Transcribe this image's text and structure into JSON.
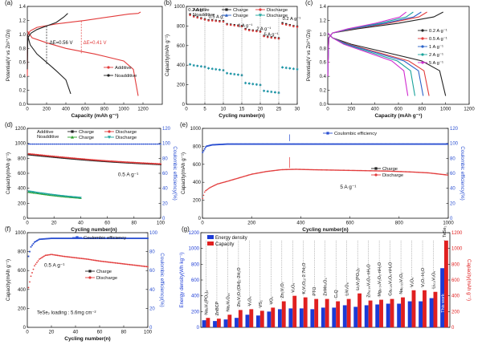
{
  "chart_data": [
    {
      "panel": "(a)",
      "type": "line",
      "xlabel": "Capacity (mAh g⁻¹)",
      "ylabel": "Potential(V vs Zn²⁺/Zn)",
      "xlim": [
        0,
        1400
      ],
      "ylim": [
        0,
        1.4
      ],
      "xticks": [
        0,
        200,
        400,
        600,
        800,
        1000,
        1200
      ],
      "yticks": [
        0,
        0.2,
        0.4,
        0.6,
        0.8,
        1.0,
        1.2,
        1.4
      ],
      "series": [
        {
          "name": "Additive",
          "color": "#e23b3b",
          "points": [
            [
              0,
              0.4
            ],
            [
              5,
              1.0
            ],
            [
              30,
              1.05
            ],
            [
              100,
              1.1
            ],
            [
              300,
              1.15
            ],
            [
              600,
              1.2
            ],
            [
              900,
              1.26
            ],
            [
              1050,
              1.29
            ],
            [
              1150,
              1.3
            ],
            [
              1175,
              1.32
            ],
            [
              null,
              null
            ],
            [
              1150,
              0.12
            ],
            [
              1100,
              0.5
            ],
            [
              1000,
              0.62
            ],
            [
              700,
              0.72
            ],
            [
              400,
              0.8
            ],
            [
              200,
              0.88
            ],
            [
              50,
              0.95
            ],
            [
              0,
              1.05
            ]
          ]
        },
        {
          "name": "Noadditive",
          "color": "#222222",
          "points": [
            [
              0,
              0.5
            ],
            [
              5,
              0.95
            ],
            [
              40,
              1.02
            ],
            [
              100,
              1.07
            ],
            [
              200,
              1.12
            ],
            [
              300,
              1.17
            ],
            [
              380,
              1.25
            ],
            [
              420,
              1.3
            ],
            [
              null,
              null
            ],
            [
              450,
              0.15
            ],
            [
              400,
              0.35
            ],
            [
              300,
              0.48
            ],
            [
              200,
              0.6
            ],
            [
              100,
              0.72
            ],
            [
              30,
              0.85
            ],
            [
              0,
              1.0
            ]
          ]
        }
      ],
      "annotations": [
        "ΔE=0.56 V",
        "ΔE=0.41 V"
      ]
    },
    {
      "panel": "(b)",
      "type": "scatter",
      "xlabel": "Cycling number(n)",
      "ylabel": "Capacity(mAh g⁻¹)",
      "xlim": [
        0,
        30
      ],
      "ylim": [
        0,
        1000
      ],
      "xticks": [
        0,
        5,
        10,
        15,
        20,
        25,
        30
      ],
      "yticks": [
        0,
        200,
        400,
        600,
        800,
        1000
      ],
      "legend": [
        "Additive",
        "Noadditive",
        "Charge",
        "Discharge",
        "Charge",
        "Discharge"
      ],
      "rate_labels": [
        "0.2 A g⁻¹",
        "0.5 A g⁻¹",
        "1 A g⁻¹",
        "2 A g⁻¹",
        "5 A g⁻¹",
        "0.2 A g⁻¹"
      ],
      "series": [
        {
          "name": "Additive Charge",
          "color": "#222222",
          "values": [
            920,
            900,
            890,
            880,
            870,
            860,
            860,
            855,
            850,
            850,
            820,
            815,
            810,
            805,
            800,
            770,
            760,
            755,
            750,
            745,
            700,
            690,
            685,
            680,
            675,
            830,
            820,
            810,
            800,
            795
          ]
        },
        {
          "name": "Additive Discharge",
          "color": "#e23b3b",
          "values": [
            910,
            895,
            885,
            875,
            865,
            855,
            855,
            850,
            845,
            845,
            815,
            810,
            805,
            800,
            795,
            765,
            755,
            750,
            745,
            740,
            695,
            685,
            680,
            675,
            670,
            820,
            812,
            805,
            795,
            790
          ]
        },
        {
          "name": "Noadditive Charge",
          "color": "#2a62c9",
          "values": [
            410,
            400,
            395,
            390,
            385,
            370,
            365,
            360,
            355,
            350,
            320,
            315,
            310,
            305,
            300,
            220,
            215,
            210,
            205,
            200,
            140,
            135,
            130,
            125,
            120,
            380,
            375,
            370,
            365,
            360
          ]
        },
        {
          "name": "Noadditive Discharge",
          "color": "#1aa39b",
          "values": [
            405,
            395,
            390,
            385,
            380,
            365,
            360,
            355,
            350,
            345,
            315,
            310,
            305,
            300,
            295,
            215,
            210,
            205,
            200,
            195,
            135,
            130,
            125,
            120,
            115,
            375,
            370,
            365,
            360,
            355
          ]
        }
      ]
    },
    {
      "panel": "(c)",
      "type": "line",
      "xlabel": "Capacity (mAh g⁻¹)",
      "ylabel": "Potential(V vs Zn²⁺/Zn)",
      "xlim": [
        0,
        1200
      ],
      "ylim": [
        0,
        1.4
      ],
      "xticks": [
        0,
        200,
        400,
        600,
        800,
        1000,
        1200
      ],
      "yticks": [
        0,
        0.2,
        0.4,
        0.6,
        0.8,
        1.0,
        1.2,
        1.4
      ],
      "series": [
        {
          "name": "0.2 A g⁻¹",
          "color": "#222222",
          "cap": 1000
        },
        {
          "name": "0.5 A g⁻¹",
          "color": "#e23b3b",
          "cap": 860
        },
        {
          "name": "1 A g⁻¹",
          "color": "#2a62c9",
          "cap": 810
        },
        {
          "name": "2 A g⁻¹",
          "color": "#1aa39b",
          "cap": 740
        },
        {
          "name": "5 A g⁻¹",
          "color": "#d02ad0",
          "cap": 680
        }
      ]
    },
    {
      "panel": "(d)",
      "type": "scatter",
      "xlabel": "Cycling number(n)",
      "ylabel": "Capacity(mAh g⁻¹)",
      "y2label": "Coulombic efficiency(%)",
      "xlim": [
        0,
        100
      ],
      "ylim": [
        0,
        1200
      ],
      "y2lim": [
        0,
        120
      ],
      "xticks": [
        0,
        20,
        40,
        60,
        80,
        100
      ],
      "yticks": [
        0,
        200,
        400,
        600,
        800,
        1000,
        1200
      ],
      "y2ticks": [
        0,
        20,
        40,
        60,
        80,
        100,
        120
      ],
      "legend": [
        "Additive",
        "Noadditive",
        "Charge",
        "Discharge",
        "Charge",
        "Discharge"
      ],
      "annotation": "0.5 A g⁻¹",
      "series": [
        {
          "name": "Additive Charge",
          "color": "#222222",
          "x_range": [
            1,
            100
          ],
          "y_start": 850,
          "y_end": 720
        },
        {
          "name": "Additive Discharge",
          "color": "#e23b3b",
          "x_range": [
            1,
            100
          ],
          "y_start": 860,
          "y_end": 725
        },
        {
          "name": "Noadditive Charge",
          "color": "#2aa02a",
          "x_range": [
            1,
            40
          ],
          "y_start": 350,
          "y_end": 270
        },
        {
          "name": "Noadditive Discharge",
          "color": "#1aa39b",
          "x_range": [
            1,
            40
          ],
          "y_start": 360,
          "y_end": 275
        },
        {
          "name": "Coulombic efficiency",
          "color": "#2a4fd1",
          "x_range": [
            1,
            100
          ],
          "y2": 99
        }
      ]
    },
    {
      "panel": "(e)",
      "type": "scatter",
      "xlabel": "Cycling number(n)",
      "ylabel": "Capacity(mAh g⁻¹)",
      "y2label": "Coulombic efficiency(%)",
      "xlim": [
        0,
        1000
      ],
      "ylim": [
        0,
        1000
      ],
      "y2lim": [
        0,
        120
      ],
      "xticks": [
        0,
        200,
        400,
        600,
        800,
        1000
      ],
      "yticks": [
        0,
        200,
        400,
        600,
        800,
        1000
      ],
      "y2ticks": [
        0,
        20,
        40,
        60,
        80,
        100,
        120
      ],
      "legend": [
        "Coulombic efficiency",
        "Charge",
        "Discharge"
      ],
      "annotation": "5 A g⁻¹",
      "series": [
        {
          "name": "Capacity",
          "color": "#e23b3b",
          "points": [
            [
              1,
              220
            ],
            [
              10,
              300
            ],
            [
              30,
              340
            ],
            [
              60,
              380
            ],
            [
              100,
              410
            ],
            [
              150,
              450
            ],
            [
              200,
              490
            ],
            [
              260,
              520
            ],
            [
              320,
              540
            ],
            [
              380,
              545
            ],
            [
              450,
              540
            ],
            [
              550,
              535
            ],
            [
              650,
              530
            ],
            [
              750,
              525
            ],
            [
              850,
              515
            ],
            [
              920,
              505
            ],
            [
              1000,
              480
            ]
          ]
        },
        {
          "name": "Coulombic efficiency",
          "color": "#2a4fd1",
          "points": [
            [
              1,
              88
            ],
            [
              15,
              96
            ],
            [
              40,
              98
            ],
            [
              100,
              99
            ],
            [
              1000,
              99
            ]
          ]
        }
      ]
    },
    {
      "panel": "(f)",
      "type": "scatter",
      "xlabel": "Cycling number(n)",
      "ylabel": "Capacity(mAh g⁻¹)",
      "y2label": "Coulombic efficiency(%)",
      "xlim": [
        0,
        100
      ],
      "ylim": [
        0,
        1000
      ],
      "y2lim": [
        0,
        100
      ],
      "xticks": [
        0,
        20,
        40,
        60,
        80,
        100
      ],
      "yticks": [
        0,
        200,
        400,
        600,
        800,
        1000
      ],
      "y2ticks": [
        0,
        20,
        40,
        60,
        80,
        100
      ],
      "legend": [
        "Coulombic efficiency",
        "Charge",
        "Discharge"
      ],
      "annotations": [
        "0.5 A g⁻¹",
        "TeSe₂ loading : 5.6mg cm⁻²"
      ],
      "series": [
        {
          "name": "Capacity",
          "color": "#e23b3b",
          "points": [
            [
              1,
              420
            ],
            [
              3,
              540
            ],
            [
              6,
              650
            ],
            [
              10,
              720
            ],
            [
              15,
              760
            ],
            [
              20,
              770
            ],
            [
              30,
              750
            ],
            [
              40,
              735
            ],
            [
              50,
              720
            ],
            [
              60,
              700
            ],
            [
              70,
              685
            ],
            [
              80,
              670
            ],
            [
              90,
              655
            ],
            [
              100,
              640
            ]
          ]
        },
        {
          "name": "Coulombic efficiency",
          "color": "#2a4fd1",
          "points": [
            [
              1,
              75
            ],
            [
              3,
              85
            ],
            [
              6,
              90
            ],
            [
              10,
              93
            ],
            [
              20,
              94
            ],
            [
              100,
              94
            ]
          ]
        }
      ]
    },
    {
      "panel": "(g)",
      "type": "bar",
      "ylabel": "Energy density(Wh kg⁻¹)",
      "y2label": "Capacity(mAh g⁻¹)",
      "ylim": [
        0,
        1200
      ],
      "y2lim": [
        0,
        1200
      ],
      "yticks": [
        0,
        200,
        400,
        600,
        800,
        1000,
        1200
      ],
      "y2ticks": [
        0,
        200,
        400,
        600,
        800,
        1000,
        1200
      ],
      "legend": [
        "Energy density",
        "Capacity"
      ],
      "highlight_label": "This work",
      "categories": [
        "Na₃V₂(PO₄)₃",
        "ZnBCP",
        "Na₂V₆O₁₆",
        "Zn₃V₂O₇(OH)₂·2H₂O",
        "V₂O₅",
        "VS₂",
        "VO₂",
        "Zn₂V₂O₇",
        "V₂O₅",
        "K₂V₆O₁₆·2.7H₂O",
        "PTO",
        "ZnMn₂O₄",
        "C₄Q",
        "LiV₃O₈",
        "Li₃V₂(PO₄)₃",
        "Zn₀.₂₅V₂O₅·nH₂O",
        "Mg₀.₃₄V₂O₅·nH₂O",
        "Ca₀.₂₅V₂O₅·nH₂O",
        "Na₀.₃₃V₂O₅",
        "V₂O₅",
        "V₃O₇·H₂O",
        "Li₀.₂V₂O₅",
        "TeSe₂"
      ],
      "energy": [
        90,
        80,
        100,
        120,
        160,
        150,
        200,
        230,
        240,
        240,
        230,
        250,
        250,
        280,
        260,
        280,
        290,
        300,
        300,
        330,
        330,
        370,
        750
      ],
      "capacity": [
        120,
        110,
        160,
        220,
        230,
        210,
        250,
        330,
        400,
        380,
        360,
        360,
        330,
        360,
        430,
        340,
        350,
        360,
        380,
        470,
        470,
        450,
        1100
      ]
    }
  ]
}
